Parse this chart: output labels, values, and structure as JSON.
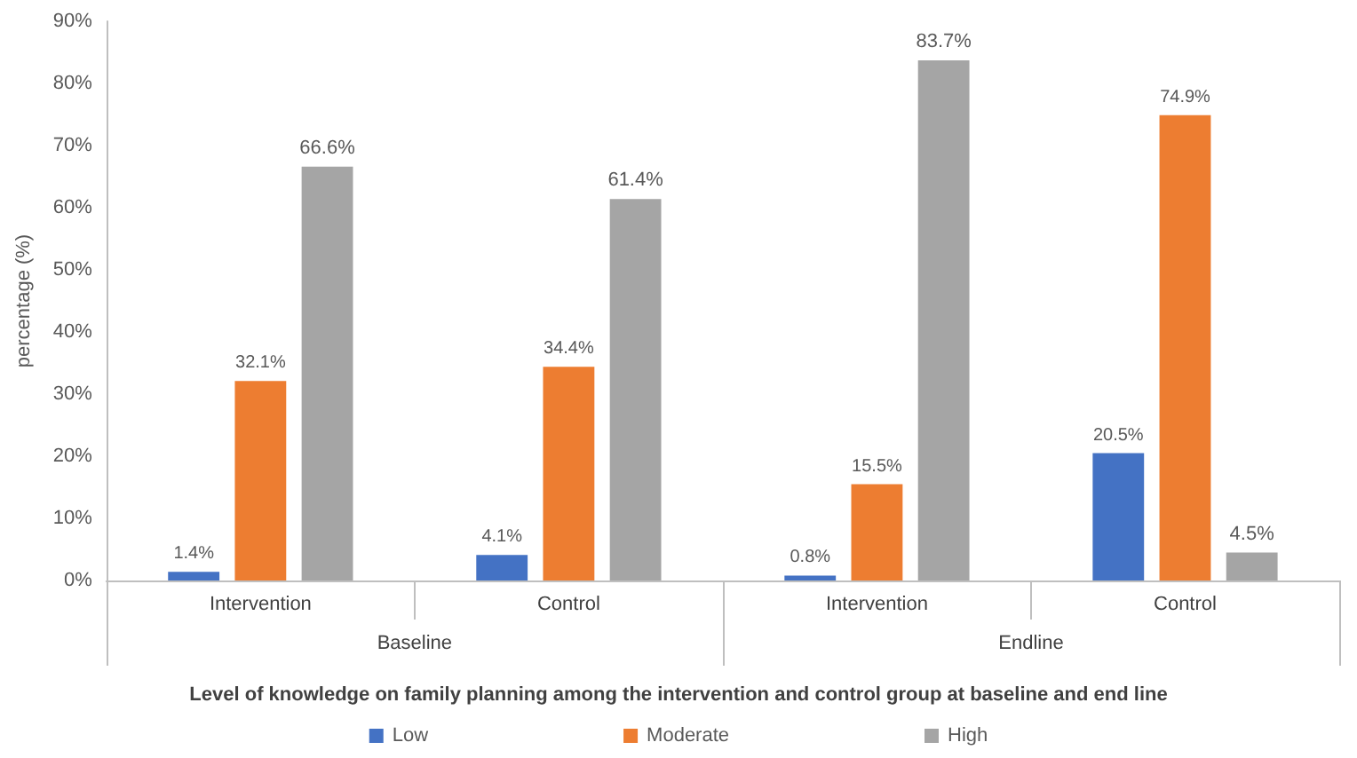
{
  "chart_data": {
    "type": "bar",
    "xlabel": "Level of knowledge on family planning among the intervention and control group at baseline and end line",
    "ylabel": "percentage (%)",
    "categories": [
      "Intervention",
      "Control",
      "Intervention",
      "Control"
    ],
    "annotations": [
      "Baseline",
      "Endline"
    ],
    "series": [
      {
        "name": "Low",
        "color": "#4472c4",
        "values": [
          1.4,
          4.1,
          0.8,
          20.5
        ],
        "value_labels": [
          "1.4%",
          "4.1%",
          "0.8%",
          "20.5%"
        ]
      },
      {
        "name": "Moderate",
        "color": "#ed7d31",
        "values": [
          32.1,
          34.4,
          15.5,
          74.9
        ],
        "value_labels": [
          "32.1%",
          "34.4%",
          "15.5%",
          "74.9%"
        ]
      },
      {
        "name": "High",
        "color": "#a5a5a5",
        "values": [
          66.6,
          61.4,
          83.7,
          4.5
        ],
        "value_labels": [
          "66.6%",
          "61.4%",
          "83.7%",
          "4.5%"
        ]
      }
    ],
    "ylim": [
      0,
      90
    ],
    "yticks": [
      {
        "value": 0,
        "label": "0%"
      },
      {
        "value": 10,
        "label": "10%"
      },
      {
        "value": 20,
        "label": "20%"
      },
      {
        "value": 30,
        "label": "30%"
      },
      {
        "value": 40,
        "label": "40%"
      },
      {
        "value": 50,
        "label": "50%"
      },
      {
        "value": 60,
        "label": "60%"
      },
      {
        "value": 70,
        "label": "70%"
      },
      {
        "value": 80,
        "label": "80%"
      },
      {
        "value": 90,
        "label": "90%"
      }
    ],
    "grid": false,
    "legend": "bottom"
  }
}
